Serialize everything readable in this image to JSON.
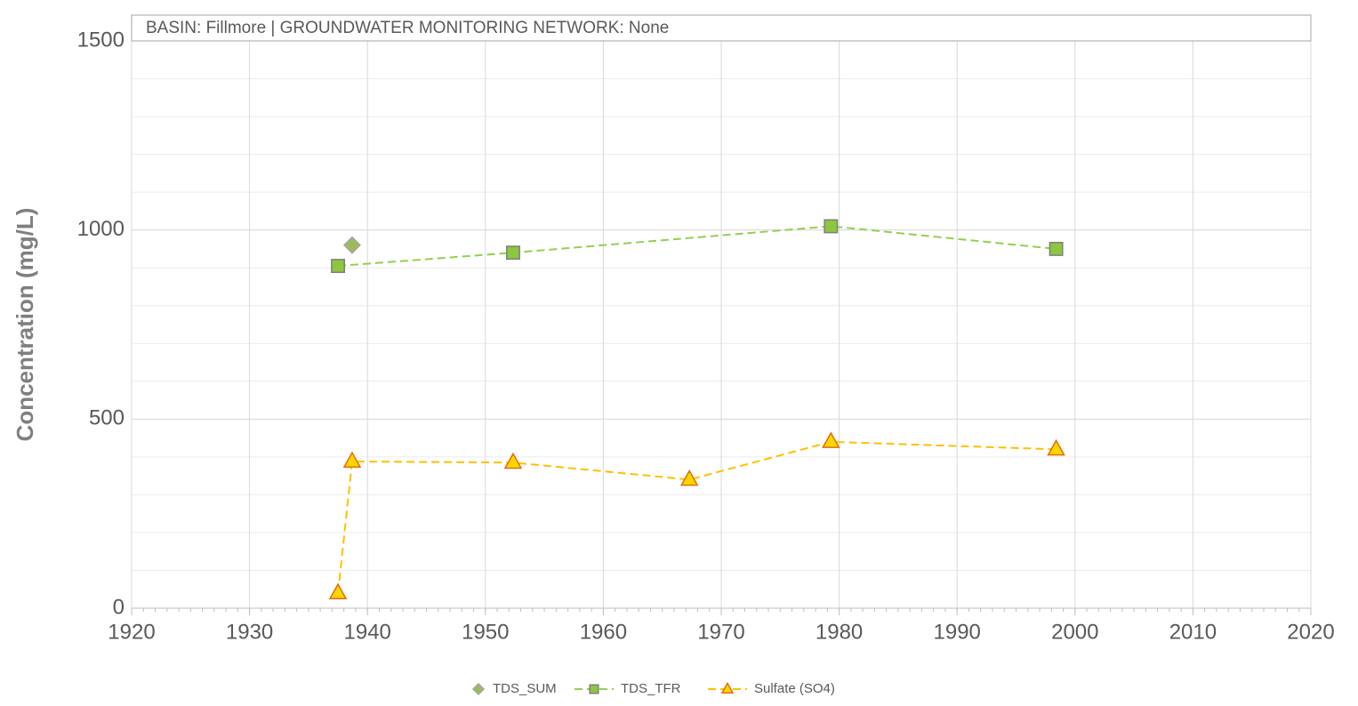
{
  "chart_data": {
    "type": "line",
    "annotation": "BASIN: Fillmore  |  GROUNDWATER MONITORING NETWORK: None",
    "ylabel": "Concentration (mg/L)",
    "xlim": [
      1920,
      2020
    ],
    "xticks": [
      1920,
      1930,
      1940,
      1950,
      1960,
      1970,
      1980,
      1990,
      2000,
      2010,
      2020
    ],
    "ylim": [
      0,
      1500
    ],
    "yticks": [
      0,
      500,
      1000,
      1500
    ],
    "x_minor_step": 1,
    "y_minor_step": 100,
    "grid": true,
    "legend": "bottom",
    "series": [
      {
        "name": "TDS_SUM",
        "color": "#9bbb59",
        "marker": "diamond",
        "line": false,
        "x": [
          1938.7
        ],
        "values": [
          960
        ]
      },
      {
        "name": "TDS_TFR",
        "color": "#92d050",
        "marker": "square",
        "line": true,
        "x": [
          1937.5,
          1952.35,
          1979.3,
          1998.4
        ],
        "values": [
          905,
          940,
          1010,
          950
        ]
      },
      {
        "name": "Sulfate (SO4)",
        "color": "#ffc000",
        "marker": "triangle",
        "line": true,
        "x": [
          1937.5,
          1938.7,
          1952.35,
          1967.3,
          1979.3,
          1998.4
        ],
        "values": [
          40,
          388,
          385,
          340,
          440,
          420
        ]
      }
    ]
  }
}
